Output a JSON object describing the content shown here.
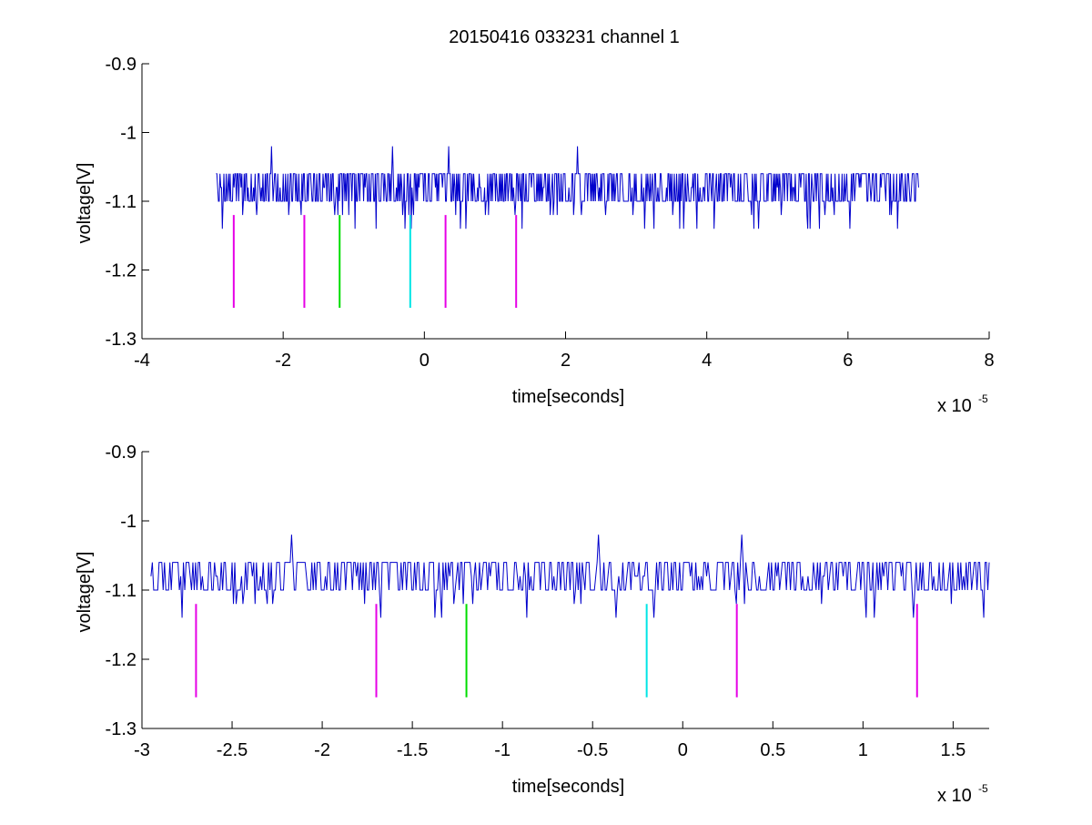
{
  "figure_title": "20150416 033231 channel 1",
  "chart_data": [
    {
      "type": "line",
      "id": "top",
      "title": "20150416 033231 channel 1",
      "xlabel": "time[seconds]",
      "ylabel": "voltage[V]",
      "x_exponent_label": "x 10",
      "x_exponent_power": "-5",
      "xlim": [
        -4e-05,
        8e-05
      ],
      "ylim": [
        -1.3,
        -0.9
      ],
      "x_ticks": [
        -4e-05,
        -2e-05,
        0,
        2e-05,
        4e-05,
        6e-05,
        8e-05
      ],
      "x_tick_labels": [
        "-4",
        "-2",
        "0",
        "2",
        "4",
        "6",
        "8"
      ],
      "y_ticks": [
        -1.3,
        -1.2,
        -1.1,
        -1.0,
        -0.9
      ],
      "y_tick_labels": [
        "-1.3",
        "-1.2",
        "-1.1",
        "-1",
        "-0.9"
      ],
      "grid": false,
      "signal": {
        "color": "#0000cc",
        "x_start": -2.95e-05,
        "x_end": 7e-05,
        "baseline": -1.1,
        "levels": [
          -1.14,
          -1.12,
          -1.1,
          -1.08,
          -1.06,
          -1.04,
          -1.02
        ],
        "spikes": [
          {
            "x": -2.17e-05,
            "y": -1.02
          },
          {
            "x": -4.5e-06,
            "y": -1.02
          },
          {
            "x": 3.5e-06,
            "y": -1.02
          },
          {
            "x": 2.17e-05,
            "y": -1.02
          }
        ]
      },
      "markers": [
        {
          "x": -2.7e-05,
          "y_top": -1.12,
          "y_bottom": -1.255,
          "color": "#e600e6"
        },
        {
          "x": -1.7e-05,
          "y_top": -1.12,
          "y_bottom": -1.255,
          "color": "#e600e6"
        },
        {
          "x": -1.2e-05,
          "y_top": -1.12,
          "y_bottom": -1.255,
          "color": "#00dd00"
        },
        {
          "x": -2e-06,
          "y_top": -1.12,
          "y_bottom": -1.255,
          "color": "#00e5e5"
        },
        {
          "x": 3e-06,
          "y_top": -1.12,
          "y_bottom": -1.255,
          "color": "#e600e6"
        },
        {
          "x": 1.3e-05,
          "y_top": -1.12,
          "y_bottom": -1.255,
          "color": "#e600e6"
        }
      ]
    },
    {
      "type": "line",
      "id": "bottom",
      "title": "",
      "xlabel": "time[seconds]",
      "ylabel": "voltage[V]",
      "x_exponent_label": "x 10",
      "x_exponent_power": "-5",
      "xlim": [
        -3e-05,
        1.7e-05
      ],
      "ylim": [
        -1.3,
        -0.9
      ],
      "x_ticks": [
        -3e-05,
        -2.5e-05,
        -2e-05,
        -1.5e-05,
        -1e-05,
        -5e-06,
        0,
        5e-06,
        1e-05,
        1.5e-05
      ],
      "x_tick_labels": [
        "-3",
        "-2.5",
        "-2",
        "-1.5",
        "-1",
        "-0.5",
        "0",
        "0.5",
        "1",
        "1.5"
      ],
      "y_ticks": [
        -1.3,
        -1.2,
        -1.1,
        -1.0,
        -0.9
      ],
      "y_tick_labels": [
        "-1.3",
        "-1.2",
        "-1.1",
        "-1",
        "-0.9"
      ],
      "grid": false,
      "signal": {
        "color": "#0000cc",
        "x_start": -2.95e-05,
        "x_end": 1.7e-05,
        "baseline": -1.1,
        "levels": [
          -1.14,
          -1.12,
          -1.1,
          -1.08,
          -1.06,
          -1.04,
          -1.02
        ],
        "spikes": [
          {
            "x": -2.17e-05,
            "y": -1.02
          },
          {
            "x": -4.7e-06,
            "y": -1.02
          },
          {
            "x": 3.3e-06,
            "y": -1.02
          }
        ]
      },
      "markers": [
        {
          "x": -2.7e-05,
          "y_top": -1.12,
          "y_bottom": -1.255,
          "color": "#e600e6"
        },
        {
          "x": -1.7e-05,
          "y_top": -1.12,
          "y_bottom": -1.255,
          "color": "#e600e6"
        },
        {
          "x": -1.2e-05,
          "y_top": -1.12,
          "y_bottom": -1.255,
          "color": "#00dd00"
        },
        {
          "x": -2e-06,
          "y_top": -1.12,
          "y_bottom": -1.255,
          "color": "#00e5e5"
        },
        {
          "x": 3e-06,
          "y_top": -1.12,
          "y_bottom": -1.255,
          "color": "#e600e6"
        },
        {
          "x": 1.3e-05,
          "y_top": -1.12,
          "y_bottom": -1.255,
          "color": "#e600e6"
        }
      ]
    }
  ]
}
